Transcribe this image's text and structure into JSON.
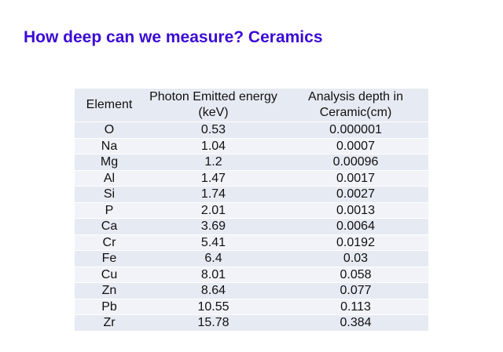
{
  "header": {
    "title": "How deep can we measure? Ceramics"
  },
  "table": {
    "columns": [
      "Element",
      "Photon Emitted energy (keV)",
      "Analysis depth in Ceramic(cm)"
    ],
    "rows": [
      [
        "O",
        "0.53",
        "0.000001"
      ],
      [
        "Na",
        "1.04",
        "0.0007"
      ],
      [
        "Mg",
        "1.2",
        "0.00096"
      ],
      [
        "Al",
        "1.47",
        "0.0017"
      ],
      [
        "Si",
        "1.74",
        "0.0027"
      ],
      [
        "P",
        "2.01",
        "0.0013"
      ],
      [
        "Ca",
        "3.69",
        "0.0064"
      ],
      [
        "Cr",
        "5.41",
        "0.0192"
      ],
      [
        "Fe",
        "6.4",
        "0.03"
      ],
      [
        "Cu",
        "8.01",
        "0.058"
      ],
      [
        "Zn",
        "8.64",
        "0.077"
      ],
      [
        "Pb",
        "10.55",
        "0.113"
      ],
      [
        "Zr",
        "15.78",
        "0.384"
      ]
    ]
  }
}
